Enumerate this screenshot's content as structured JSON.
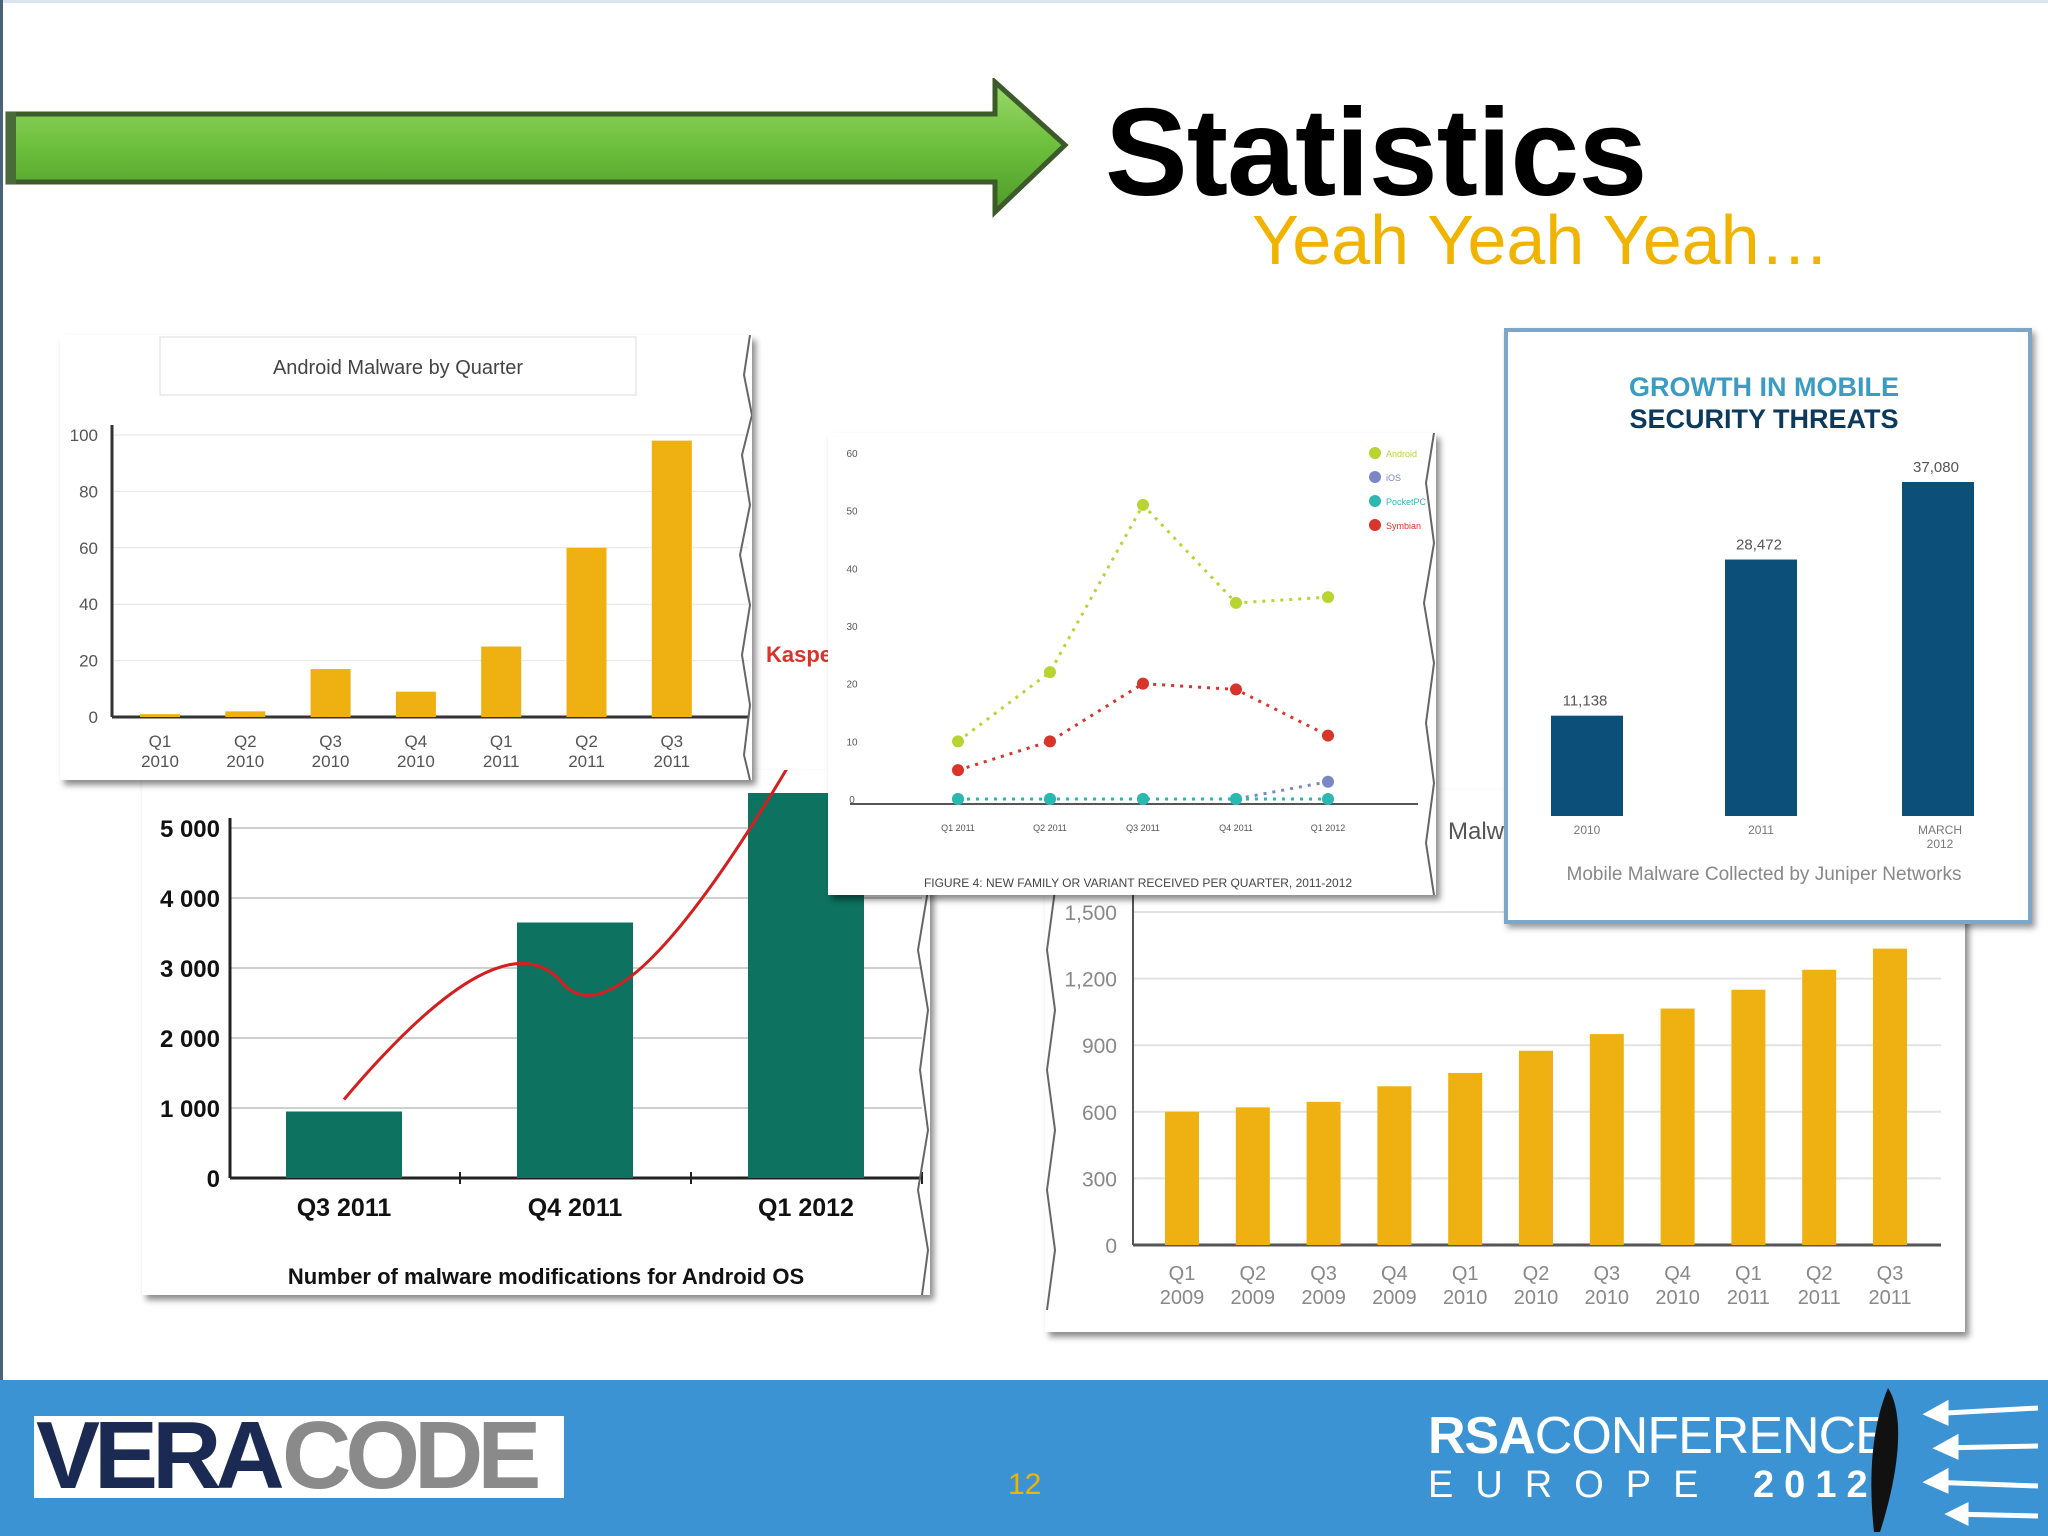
{
  "slide": {
    "title": "Statistics",
    "subtitle": "Yeah Yeah Yeah…",
    "page_number": "12"
  },
  "branding": {
    "veracode_part1": "VERA",
    "veracode_part2": "CODE",
    "rsa_line1_bold": "RSA",
    "rsa_line1_rest": "CONFERENCE",
    "rsa_line2_word": "EUROPE",
    "rsa_line2_year": "2012"
  },
  "colors": {
    "arrow_green": "#6cbf3c",
    "subtitle": "#f0b400",
    "footer": "#3b93d3",
    "bar_gold": "#eeb111",
    "bar_teal": "#0d7260",
    "bar_navy": "#0c5079"
  },
  "fragments": {
    "kaspersky_label": "Kaspe",
    "malware_label": "Malw"
  },
  "chart_data": [
    {
      "type": "bar",
      "title": "Android Malware by Quarter",
      "categories": [
        "Q1 2010",
        "Q2 2010",
        "Q3 2010",
        "Q4 2010",
        "Q1 2011",
        "Q2 2011",
        "Q3 2011"
      ],
      "values": [
        1,
        2,
        17,
        9,
        25,
        60,
        98
      ],
      "ylim": [
        0,
        100
      ],
      "yticks": [
        0,
        20,
        40,
        60,
        80,
        100
      ],
      "grid": true,
      "color": "#eeb111"
    },
    {
      "type": "bar",
      "title": "",
      "caption": "Number of malware modifications for Android OS",
      "categories": [
        "Q3 2011",
        "Q4 2011",
        "Q1 2012"
      ],
      "values": [
        950,
        3650,
        5500
      ],
      "ylim": [
        0,
        5000
      ],
      "yticks": [
        "0",
        "1 000",
        "2 000",
        "3 000",
        "4 000",
        "5 000"
      ],
      "trend_line": true,
      "color": "#0d7260"
    },
    {
      "type": "line",
      "caption": "FIGURE 4: NEW FAMILY OR VARIANT RECEIVED PER QUARTER, 2011-2012",
      "categories": [
        "Q1 2011",
        "Q2 2011",
        "Q3 2011",
        "Q4 2011",
        "Q1 2012"
      ],
      "ylim": [
        0,
        60
      ],
      "yticks": [
        0,
        10,
        20,
        30,
        40,
        50,
        60
      ],
      "series": [
        {
          "name": "Android",
          "color": "#b8d432",
          "values": [
            10,
            22,
            51,
            34,
            35
          ]
        },
        {
          "name": "iOS",
          "color": "#7b86c4",
          "values": [
            0,
            0,
            0,
            0,
            3
          ]
        },
        {
          "name": "PocketPC",
          "color": "#2bb8b0",
          "values": [
            0,
            0,
            0,
            0,
            0
          ]
        },
        {
          "name": "Symbian",
          "color": "#d9342b",
          "values": [
            5,
            10,
            20,
            19,
            11
          ]
        }
      ],
      "legend": "top-right"
    },
    {
      "type": "bar",
      "title": "GROWTH IN MOBILE SECURITY THREATS",
      "caption": "Mobile Malware Collected by Juniper Networks",
      "categories": [
        "2010",
        "2011",
        "MARCH 2012"
      ],
      "values": [
        11138,
        28472,
        37080
      ],
      "value_labels": [
        "11,138",
        "28,472",
        "37,080"
      ],
      "color": "#0c5079"
    },
    {
      "type": "bar",
      "title": "",
      "categories": [
        "Q1 2009",
        "Q2 2009",
        "Q3 2009",
        "Q4 2009",
        "Q1 2010",
        "Q2 2010",
        "Q3 2010",
        "Q4 2010",
        "Q1 2011",
        "Q2 2011",
        "Q3 2011"
      ],
      "values": [
        600,
        620,
        645,
        715,
        775,
        875,
        950,
        1065,
        1150,
        1240,
        1335
      ],
      "ylim": [
        0,
        1500
      ],
      "yticks": [
        "0",
        "300",
        "600",
        "900",
        "1,200",
        "1,500"
      ],
      "grid": true,
      "color": "#eeb111"
    }
  ]
}
